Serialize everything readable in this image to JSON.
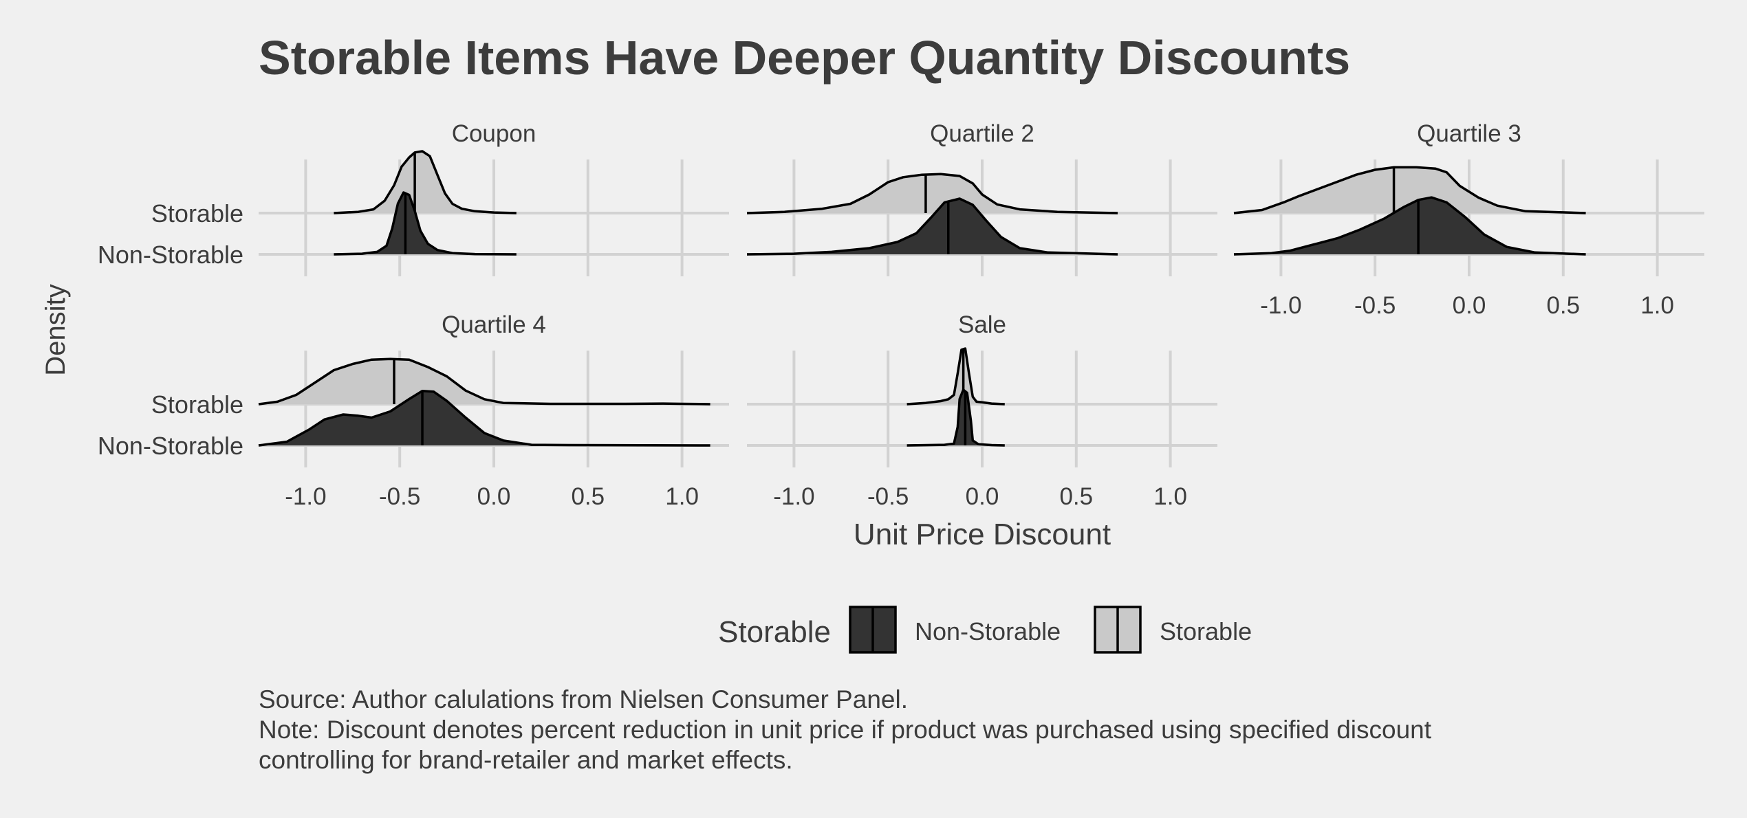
{
  "title": "Storable Items Have Deeper Quantity Discounts",
  "caption": {
    "source": "Source: Author calulations from Nielsen Consumer Panel.",
    "note_line1": "Note: Discount denotes percent reduction in unit price if product was purchased using specified discount",
    "note_line2": "controlling for brand-retailer and market effects."
  },
  "colors": {
    "background": "#f0f0f0",
    "grid": "#d2d2d2",
    "storable": "#c9c9c9",
    "non_storable": "#333333",
    "outline": "#000000",
    "text": "#3c3c3c"
  },
  "chart_data": {
    "type": "ridgeline density",
    "ylabel": "Density",
    "xlabel": "Unit Price Discount",
    "x_ticks": [
      -1.0,
      -0.5,
      0.0,
      0.5,
      1.0
    ],
    "x_tick_labels": [
      "-1.0",
      "-0.5",
      "0.0",
      "0.5",
      "1.0"
    ],
    "xlim": [
      -1.25,
      1.25
    ],
    "y_categories": [
      "Storable",
      "Non-Storable"
    ],
    "legend": {
      "title": "Storable",
      "entries": [
        "Non-Storable",
        "Storable"
      ],
      "position": "bottom"
    },
    "grid": true,
    "panels": [
      {
        "name": "Coupon",
        "series": [
          {
            "name": "Storable",
            "median": -0.42,
            "range": [
              -0.85,
              0.12
            ],
            "pts": [
              [
                -0.85,
                0
              ],
              [
                -0.72,
                0.02
              ],
              [
                -0.64,
                0.06
              ],
              [
                -0.58,
                0.2
              ],
              [
                -0.53,
                0.45
              ],
              [
                -0.49,
                0.75
              ],
              [
                -0.45,
                0.9
              ],
              [
                -0.42,
                0.98
              ],
              [
                -0.38,
                1.0
              ],
              [
                -0.34,
                0.92
              ],
              [
                -0.3,
                0.62
              ],
              [
                -0.26,
                0.32
              ],
              [
                -0.22,
                0.15
              ],
              [
                -0.17,
                0.07
              ],
              [
                -0.1,
                0.03
              ],
              [
                0.0,
                0.01
              ],
              [
                0.12,
                0
              ]
            ]
          },
          {
            "name": "Non-Storable",
            "median": -0.47,
            "range": [
              -0.85,
              0.12
            ],
            "pts": [
              [
                -0.85,
                0
              ],
              [
                -0.7,
                0.01
              ],
              [
                -0.62,
                0.04
              ],
              [
                -0.57,
                0.14
              ],
              [
                -0.54,
                0.42
              ],
              [
                -0.51,
                0.82
              ],
              [
                -0.48,
                1.0
              ],
              [
                -0.45,
                0.96
              ],
              [
                -0.42,
                0.7
              ],
              [
                -0.39,
                0.38
              ],
              [
                -0.35,
                0.17
              ],
              [
                -0.3,
                0.07
              ],
              [
                -0.22,
                0.02
              ],
              [
                -0.1,
                0.005
              ],
              [
                0.12,
                0
              ]
            ]
          }
        ]
      },
      {
        "name": "Quartile 2",
        "series": [
          {
            "name": "Storable",
            "median": -0.3,
            "range": [
              -1.25,
              0.72
            ],
            "pts": [
              [
                -1.25,
                0
              ],
              [
                -1.05,
                0.02
              ],
              [
                -0.85,
                0.07
              ],
              [
                -0.7,
                0.15
              ],
              [
                -0.6,
                0.3
              ],
              [
                -0.5,
                0.5
              ],
              [
                -0.42,
                0.58
              ],
              [
                -0.32,
                0.62
              ],
              [
                -0.22,
                0.63
              ],
              [
                -0.12,
                0.6
              ],
              [
                -0.05,
                0.48
              ],
              [
                0.0,
                0.3
              ],
              [
                0.08,
                0.14
              ],
              [
                0.2,
                0.06
              ],
              [
                0.4,
                0.02
              ],
              [
                0.72,
                0
              ]
            ]
          },
          {
            "name": "Non-Storable",
            "median": -0.18,
            "range": [
              -1.25,
              0.72
            ],
            "pts": [
              [
                -1.25,
                0
              ],
              [
                -1.0,
                0.01
              ],
              [
                -0.8,
                0.04
              ],
              [
                -0.6,
                0.1
              ],
              [
                -0.45,
                0.2
              ],
              [
                -0.35,
                0.34
              ],
              [
                -0.27,
                0.6
              ],
              [
                -0.2,
                0.84
              ],
              [
                -0.12,
                0.9
              ],
              [
                -0.05,
                0.8
              ],
              [
                0.02,
                0.55
              ],
              [
                0.1,
                0.28
              ],
              [
                0.2,
                0.1
              ],
              [
                0.35,
                0.03
              ],
              [
                0.72,
                0
              ]
            ]
          }
        ]
      },
      {
        "name": "Quartile 3",
        "series": [
          {
            "name": "Storable",
            "median": -0.4,
            "range": [
              -1.25,
              0.62
            ],
            "pts": [
              [
                -1.25,
                0
              ],
              [
                -1.1,
                0.05
              ],
              [
                -0.98,
                0.18
              ],
              [
                -0.9,
                0.28
              ],
              [
                -0.75,
                0.45
              ],
              [
                -0.6,
                0.62
              ],
              [
                -0.5,
                0.7
              ],
              [
                -0.4,
                0.74
              ],
              [
                -0.28,
                0.74
              ],
              [
                -0.18,
                0.72
              ],
              [
                -0.12,
                0.66
              ],
              [
                -0.05,
                0.44
              ],
              [
                0.05,
                0.25
              ],
              [
                0.15,
                0.12
              ],
              [
                0.3,
                0.03
              ],
              [
                0.62,
                0
              ]
            ]
          },
          {
            "name": "Non-Storable",
            "median": -0.27,
            "range": [
              -1.25,
              0.62
            ],
            "pts": [
              [
                -1.25,
                0
              ],
              [
                -1.05,
                0.02
              ],
              [
                -0.95,
                0.06
              ],
              [
                -0.8,
                0.18
              ],
              [
                -0.7,
                0.26
              ],
              [
                -0.58,
                0.4
              ],
              [
                -0.45,
                0.58
              ],
              [
                -0.35,
                0.76
              ],
              [
                -0.27,
                0.88
              ],
              [
                -0.2,
                0.92
              ],
              [
                -0.12,
                0.84
              ],
              [
                -0.02,
                0.6
              ],
              [
                0.08,
                0.32
              ],
              [
                0.2,
                0.12
              ],
              [
                0.35,
                0.03
              ],
              [
                0.62,
                0
              ]
            ]
          }
        ]
      },
      {
        "name": "Quartile 4",
        "series": [
          {
            "name": "Storable",
            "median": -0.53,
            "range": [
              -1.25,
              1.15
            ],
            "pts": [
              [
                -1.25,
                0
              ],
              [
                -1.15,
                0.04
              ],
              [
                -1.05,
                0.15
              ],
              [
                -0.95,
                0.35
              ],
              [
                -0.85,
                0.55
              ],
              [
                -0.75,
                0.65
              ],
              [
                -0.65,
                0.72
              ],
              [
                -0.55,
                0.73
              ],
              [
                -0.45,
                0.72
              ],
              [
                -0.35,
                0.6
              ],
              [
                -0.25,
                0.45
              ],
              [
                -0.15,
                0.22
              ],
              [
                -0.05,
                0.08
              ],
              [
                0.05,
                0.02
              ],
              [
                0.3,
                0.005
              ],
              [
                0.7,
                0.005
              ],
              [
                0.9,
                0.01
              ],
              [
                1.0,
                0.005
              ],
              [
                1.15,
                0
              ]
            ]
          },
          {
            "name": "Non-Storable",
            "median": -0.38,
            "range": [
              -1.25,
              1.15
            ],
            "pts": [
              [
                -1.25,
                0
              ],
              [
                -1.1,
                0.06
              ],
              [
                -0.98,
                0.26
              ],
              [
                -0.9,
                0.42
              ],
              [
                -0.8,
                0.5
              ],
              [
                -0.72,
                0.48
              ],
              [
                -0.65,
                0.45
              ],
              [
                -0.55,
                0.55
              ],
              [
                -0.45,
                0.75
              ],
              [
                -0.38,
                0.88
              ],
              [
                -0.32,
                0.87
              ],
              [
                -0.25,
                0.72
              ],
              [
                -0.15,
                0.45
              ],
              [
                -0.05,
                0.2
              ],
              [
                0.05,
                0.08
              ],
              [
                0.2,
                0.01
              ],
              [
                0.4,
                0.005
              ],
              [
                1.15,
                0
              ]
            ]
          }
        ]
      },
      {
        "name": "Sale",
        "series": [
          {
            "name": "Storable",
            "median": -0.1,
            "range": [
              -0.4,
              0.12
            ],
            "pts": [
              [
                -0.4,
                0
              ],
              [
                -0.3,
                0.02
              ],
              [
                -0.22,
                0.05
              ],
              [
                -0.18,
                0.08
              ],
              [
                -0.15,
                0.15
              ],
              [
                -0.13,
                0.5
              ],
              [
                -0.11,
                0.88
              ],
              [
                -0.09,
                0.9
              ],
              [
                -0.07,
                0.5
              ],
              [
                -0.05,
                0.12
              ],
              [
                -0.03,
                0.04
              ],
              [
                0.0,
                0.03
              ],
              [
                0.05,
                0.01
              ],
              [
                0.12,
                0
              ]
            ]
          },
          {
            "name": "Non-Storable",
            "median": -0.09,
            "range": [
              -0.4,
              0.12
            ],
            "pts": [
              [
                -0.4,
                0
              ],
              [
                -0.2,
                0.01
              ],
              [
                -0.15,
                0.03
              ],
              [
                -0.13,
                0.3
              ],
              [
                -0.12,
                0.75
              ],
              [
                -0.1,
                0.9
              ],
              [
                -0.08,
                0.85
              ],
              [
                -0.06,
                0.4
              ],
              [
                -0.05,
                0.08
              ],
              [
                -0.02,
                0.02
              ],
              [
                0.05,
                0.005
              ],
              [
                0.12,
                0
              ]
            ]
          }
        ]
      }
    ]
  }
}
